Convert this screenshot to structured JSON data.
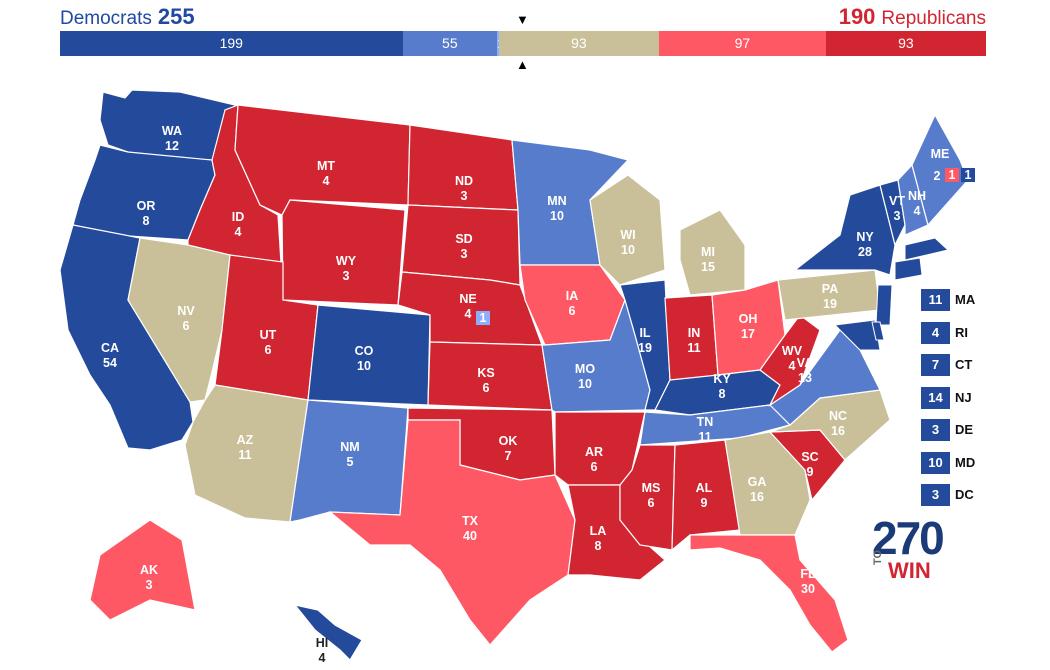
{
  "header": {
    "dem_label": "Democrats",
    "dem_total": "255",
    "rep_total": "190",
    "rep_label": "Republicans",
    "marker_top": "▼",
    "marker_bottom": "▲"
  },
  "colors": {
    "safe_dem": "#244a9b",
    "likely_dem": "#577ccc",
    "lean_dem": "#8aafff",
    "tossup": "#c9bf98",
    "lean_rep": "#ff5865",
    "safe_rep": "#d22532"
  },
  "bar_segments": [
    {
      "label": "199",
      "value": 199,
      "color": "#244a9b"
    },
    {
      "label": "55",
      "value": 55,
      "color": "#577ccc"
    },
    {
      "label": "1",
      "value": 1,
      "color": "#8aafff"
    },
    {
      "label": "93",
      "value": 93,
      "color": "#c9bf98"
    },
    {
      "label": "97",
      "value": 97,
      "color": "#ff5865"
    },
    {
      "label": "93",
      "value": 93,
      "color": "#d22532"
    }
  ],
  "states": [
    {
      "abbr": "WA",
      "ev": "12",
      "cat": "safe_dem"
    },
    {
      "abbr": "OR",
      "ev": "8",
      "cat": "safe_dem"
    },
    {
      "abbr": "CA",
      "ev": "54",
      "cat": "safe_dem"
    },
    {
      "abbr": "ID",
      "ev": "4",
      "cat": "safe_rep"
    },
    {
      "abbr": "NV",
      "ev": "6",
      "cat": "tossup"
    },
    {
      "abbr": "MT",
      "ev": "4",
      "cat": "safe_rep"
    },
    {
      "abbr": "WY",
      "ev": "3",
      "cat": "safe_rep"
    },
    {
      "abbr": "UT",
      "ev": "6",
      "cat": "safe_rep"
    },
    {
      "abbr": "AZ",
      "ev": "11",
      "cat": "tossup"
    },
    {
      "abbr": "CO",
      "ev": "10",
      "cat": "safe_dem"
    },
    {
      "abbr": "NM",
      "ev": "5",
      "cat": "likely_dem"
    },
    {
      "abbr": "ND",
      "ev": "3",
      "cat": "safe_rep"
    },
    {
      "abbr": "SD",
      "ev": "3",
      "cat": "safe_rep"
    },
    {
      "abbr": "NE",
      "ev": "4",
      "cat": "safe_rep"
    },
    {
      "abbr": "KS",
      "ev": "6",
      "cat": "safe_rep"
    },
    {
      "abbr": "OK",
      "ev": "7",
      "cat": "safe_rep"
    },
    {
      "abbr": "TX",
      "ev": "40",
      "cat": "lean_rep"
    },
    {
      "abbr": "MN",
      "ev": "10",
      "cat": "likely_dem"
    },
    {
      "abbr": "IA",
      "ev": "6",
      "cat": "lean_rep"
    },
    {
      "abbr": "MO",
      "ev": "10",
      "cat": "likely_dem"
    },
    {
      "abbr": "AR",
      "ev": "6",
      "cat": "safe_rep"
    },
    {
      "abbr": "LA",
      "ev": "8",
      "cat": "safe_rep"
    },
    {
      "abbr": "WI",
      "ev": "10",
      "cat": "tossup"
    },
    {
      "abbr": "IL",
      "ev": "19",
      "cat": "safe_dem"
    },
    {
      "abbr": "MI",
      "ev": "15",
      "cat": "tossup"
    },
    {
      "abbr": "IN",
      "ev": "11",
      "cat": "safe_rep"
    },
    {
      "abbr": "OH",
      "ev": "17",
      "cat": "lean_rep"
    },
    {
      "abbr": "KY",
      "ev": "8",
      "cat": "safe_dem"
    },
    {
      "abbr": "TN",
      "ev": "11",
      "cat": "likely_dem"
    },
    {
      "abbr": "MS",
      "ev": "6",
      "cat": "safe_rep"
    },
    {
      "abbr": "AL",
      "ev": "9",
      "cat": "safe_rep"
    },
    {
      "abbr": "GA",
      "ev": "16",
      "cat": "tossup"
    },
    {
      "abbr": "FL",
      "ev": "30",
      "cat": "lean_rep"
    },
    {
      "abbr": "SC",
      "ev": "9",
      "cat": "safe_rep"
    },
    {
      "abbr": "NC",
      "ev": "16",
      "cat": "tossup"
    },
    {
      "abbr": "VA",
      "ev": "13",
      "cat": "likely_dem"
    },
    {
      "abbr": "WV",
      "ev": "4",
      "cat": "safe_rep"
    },
    {
      "abbr": "PA",
      "ev": "19",
      "cat": "tossup"
    },
    {
      "abbr": "NY",
      "ev": "28",
      "cat": "safe_dem"
    },
    {
      "abbr": "VT",
      "ev": "3",
      "cat": "safe_dem"
    },
    {
      "abbr": "NH",
      "ev": "4",
      "cat": "likely_dem"
    },
    {
      "abbr": "ME",
      "ev": "",
      "cat": "likely_dem"
    },
    {
      "abbr": "AK",
      "ev": "3",
      "cat": "lean_rep"
    },
    {
      "abbr": "HI",
      "ev": "4",
      "cat": "safe_dem"
    }
  ],
  "split_votes": {
    "ne_district": "1",
    "me_statewide": "2",
    "me_d2": "1",
    "me_d1": "1"
  },
  "small_states": [
    {
      "abbr": "MA",
      "ev": "11"
    },
    {
      "abbr": "RI",
      "ev": "4"
    },
    {
      "abbr": "CT",
      "ev": "7"
    },
    {
      "abbr": "NJ",
      "ev": "14"
    },
    {
      "abbr": "DE",
      "ev": "3"
    },
    {
      "abbr": "MD",
      "ev": "10"
    },
    {
      "abbr": "DC",
      "ev": "3"
    }
  ],
  "logo": {
    "big": "270",
    "to": "TO",
    "win": "WIN"
  }
}
